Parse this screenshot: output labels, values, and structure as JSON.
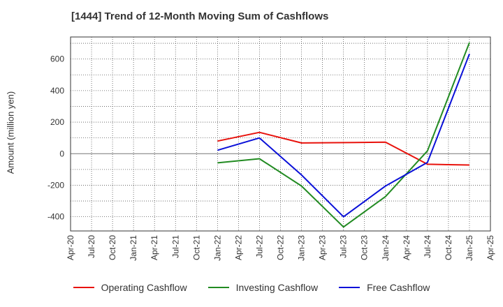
{
  "chart_data": {
    "type": "line",
    "title": "[1444]  Trend of 12-Month Moving Sum of Cashflows",
    "xlabel": "",
    "ylabel": "Amount (million yen)",
    "categories": [
      "Apr-20",
      "Jul-20",
      "Oct-20",
      "Jan-21",
      "Apr-21",
      "Jul-21",
      "Oct-21",
      "Jan-22",
      "Apr-22",
      "Jul-22",
      "Oct-22",
      "Jan-23",
      "Apr-23",
      "Jul-23",
      "Oct-23",
      "Jan-24",
      "Apr-24",
      "Jul-24",
      "Oct-24",
      "Jan-25",
      "Apr-25"
    ],
    "yticks": [
      600,
      400,
      200,
      0,
      -200,
      -400
    ],
    "ylim": [
      -490,
      740
    ],
    "grid": true,
    "legend_position": "bottom",
    "series": [
      {
        "name": "Operating Cashflow",
        "color": "#e8120c",
        "points": [
          [
            "Jan-22",
            80
          ],
          [
            "Jul-22",
            135
          ],
          [
            "Jan-23",
            68
          ],
          [
            "Jan-24",
            73
          ],
          [
            "Jul-24",
            -67
          ],
          [
            "Jan-25",
            -72
          ]
        ]
      },
      {
        "name": "Investing Cashflow",
        "color": "#228b22",
        "points": [
          [
            "Jan-22",
            -58
          ],
          [
            "Jul-22",
            -32
          ],
          [
            "Jan-23",
            -205
          ],
          [
            "Jul-23",
            -465
          ],
          [
            "Jan-24",
            -272
          ],
          [
            "Jul-24",
            18
          ],
          [
            "Jan-25",
            705
          ]
        ]
      },
      {
        "name": "Free Cashflow",
        "color": "#0a10d8",
        "points": [
          [
            "Jan-22",
            22
          ],
          [
            "Jul-22",
            100
          ],
          [
            "Jan-23",
            -135
          ],
          [
            "Jul-23",
            -400
          ],
          [
            "Jan-24",
            -205
          ],
          [
            "Jul-24",
            -55
          ],
          [
            "Jan-25",
            633
          ]
        ]
      }
    ]
  }
}
